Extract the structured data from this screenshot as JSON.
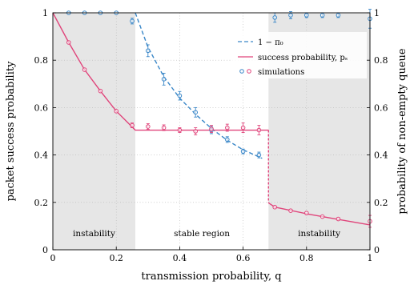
{
  "chart_data": {
    "type": "line",
    "xlabel": "transmission probability, q",
    "ylabel_left": "packet success probability",
    "ylabel_right": "probability of non-empty queue",
    "xlim": [
      0,
      1
    ],
    "ylim_left": [
      0,
      1
    ],
    "ylim_right": [
      0,
      1
    ],
    "x_ticks": [
      "0",
      "0.2",
      "0.4",
      "0.6",
      "0.8",
      "1"
    ],
    "y_ticks_left": [
      "0",
      "0.2",
      "0.4",
      "0.6",
      "0.8",
      "1"
    ],
    "y_ticks_right": [
      "0",
      "0.2",
      "0.4",
      "0.6",
      "0.8",
      "1"
    ],
    "grid": true,
    "legend_position": "top-right",
    "colors": {
      "success": "#e0457b",
      "queue": "#3a87c8",
      "shade": "#e6e6e6"
    },
    "regions": [
      {
        "label": "instability",
        "from": 0,
        "to": 0.26,
        "shaded": true
      },
      {
        "label": "stable region",
        "from": 0.26,
        "to": 0.68,
        "shaded": false
      },
      {
        "label": "instability",
        "from": 0.68,
        "to": 1.0,
        "shaded": true
      }
    ],
    "series": [
      {
        "name": "1 − π₀",
        "style": "dashed",
        "axis": "right",
        "color": "#3a87c8",
        "x": [
          0.26,
          0.3,
          0.35,
          0.4,
          0.45,
          0.5,
          0.55,
          0.6,
          0.65,
          0.66
        ],
        "y": [
          1.0,
          0.855,
          0.73,
          0.64,
          0.572,
          0.512,
          0.462,
          0.422,
          0.392,
          0.386
        ]
      },
      {
        "name": "success probability, pₛ",
        "style": "solid",
        "axis": "left",
        "color": "#e0457b",
        "x": [
          0,
          0.05,
          0.1,
          0.15,
          0.2,
          0.26,
          0.3,
          0.4,
          0.5,
          0.6,
          0.68,
          0.68,
          0.7,
          0.8,
          0.9,
          1.0
        ],
        "y": [
          1.0,
          0.875,
          0.76,
          0.67,
          0.585,
          0.505,
          0.505,
          0.505,
          0.505,
          0.505,
          0.505,
          0.198,
          0.18,
          0.152,
          0.128,
          0.105
        ],
        "dashed_segment_at_x": 0.68
      },
      {
        "name": "simulations",
        "style": "markers",
        "points_queue": [
          {
            "x": 0.05,
            "y": 1.0
          },
          {
            "x": 0.1,
            "y": 1.0
          },
          {
            "x": 0.15,
            "y": 1.0
          },
          {
            "x": 0.2,
            "y": 1.0
          },
          {
            "x": 0.25,
            "y": 0.965,
            "err": 0.012
          },
          {
            "x": 0.3,
            "y": 0.84,
            "err": 0.025
          },
          {
            "x": 0.35,
            "y": 0.72,
            "err": 0.025
          },
          {
            "x": 0.4,
            "y": 0.65,
            "err": 0.018
          },
          {
            "x": 0.45,
            "y": 0.58,
            "err": 0.02
          },
          {
            "x": 0.5,
            "y": 0.505,
            "err": 0.015
          },
          {
            "x": 0.55,
            "y": 0.465,
            "err": 0.012
          },
          {
            "x": 0.6,
            "y": 0.415,
            "err": 0.01
          },
          {
            "x": 0.65,
            "y": 0.4,
            "err": 0.012
          },
          {
            "x": 0.7,
            "y": 0.98,
            "err": 0.02
          },
          {
            "x": 0.75,
            "y": 0.99,
            "err": 0.015
          },
          {
            "x": 0.8,
            "y": 0.99,
            "err": 0.01
          },
          {
            "x": 0.85,
            "y": 0.99,
            "err": 0.01
          },
          {
            "x": 0.9,
            "y": 0.99,
            "err": 0.01
          },
          {
            "x": 1.0,
            "y": 0.975,
            "err": 0.04
          }
        ],
        "points_success": [
          {
            "x": 0.05,
            "y": 0.875
          },
          {
            "x": 0.1,
            "y": 0.76
          },
          {
            "x": 0.15,
            "y": 0.67
          },
          {
            "x": 0.2,
            "y": 0.585
          },
          {
            "x": 0.25,
            "y": 0.525,
            "err": 0.01
          },
          {
            "x": 0.3,
            "y": 0.52,
            "err": 0.012
          },
          {
            "x": 0.35,
            "y": 0.515,
            "err": 0.012
          },
          {
            "x": 0.4,
            "y": 0.505,
            "err": 0.01
          },
          {
            "x": 0.45,
            "y": 0.5,
            "err": 0.015
          },
          {
            "x": 0.5,
            "y": 0.51,
            "err": 0.015
          },
          {
            "x": 0.55,
            "y": 0.515,
            "err": 0.015
          },
          {
            "x": 0.6,
            "y": 0.515,
            "err": 0.02
          },
          {
            "x": 0.65,
            "y": 0.505,
            "err": 0.02
          },
          {
            "x": 0.7,
            "y": 0.18
          },
          {
            "x": 0.75,
            "y": 0.165
          },
          {
            "x": 0.8,
            "y": 0.155
          },
          {
            "x": 0.85,
            "y": 0.14
          },
          {
            "x": 0.9,
            "y": 0.13
          },
          {
            "x": 1.0,
            "y": 0.12,
            "err": 0.025
          }
        ]
      }
    ]
  }
}
